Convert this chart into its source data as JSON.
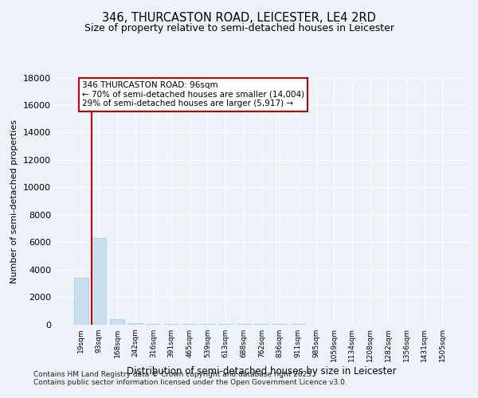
{
  "title_line1": "346, THURCASTON ROAD, LEICESTER, LE4 2RD",
  "title_line2": "Size of property relative to semi-detached houses in Leicester",
  "xlabel": "Distribution of semi-detached houses by size in Leicester",
  "ylabel": "Number of semi-detached properties",
  "categories": [
    "19sqm",
    "93sqm",
    "168sqm",
    "242sqm",
    "316sqm",
    "391sqm",
    "465sqm",
    "539sqm",
    "613sqm",
    "688sqm",
    "762sqm",
    "836sqm",
    "911sqm",
    "985sqm",
    "1059sqm",
    "1134sqm",
    "1208sqm",
    "1282sqm",
    "1356sqm",
    "1431sqm",
    "1505sqm"
  ],
  "values": [
    3400,
    6300,
    400,
    100,
    40,
    20,
    10,
    5,
    3,
    2,
    1,
    1,
    1,
    0,
    0,
    0,
    0,
    0,
    0,
    0,
    0
  ],
  "bar_color": "#c9dff0",
  "bar_edge_color": "#a8c8e8",
  "red_line_bar_index": 0,
  "annotation_text": "346 THURCASTON ROAD: 96sqm\n← 70% of semi-detached houses are smaller (14,004)\n29% of semi-detached houses are larger (5,917) →",
  "annotation_box_color": "#ffffff",
  "annotation_border_color": "#cc0000",
  "ylim": [
    0,
    18000
  ],
  "yticks": [
    0,
    2000,
    4000,
    6000,
    8000,
    10000,
    12000,
    14000,
    16000,
    18000
  ],
  "bg_color": "#edf2f9",
  "grid_color": "#ffffff",
  "footer_text": "Contains HM Land Registry data © Crown copyright and database right 2025.\nContains public sector information licensed under the Open Government Licence v3.0."
}
